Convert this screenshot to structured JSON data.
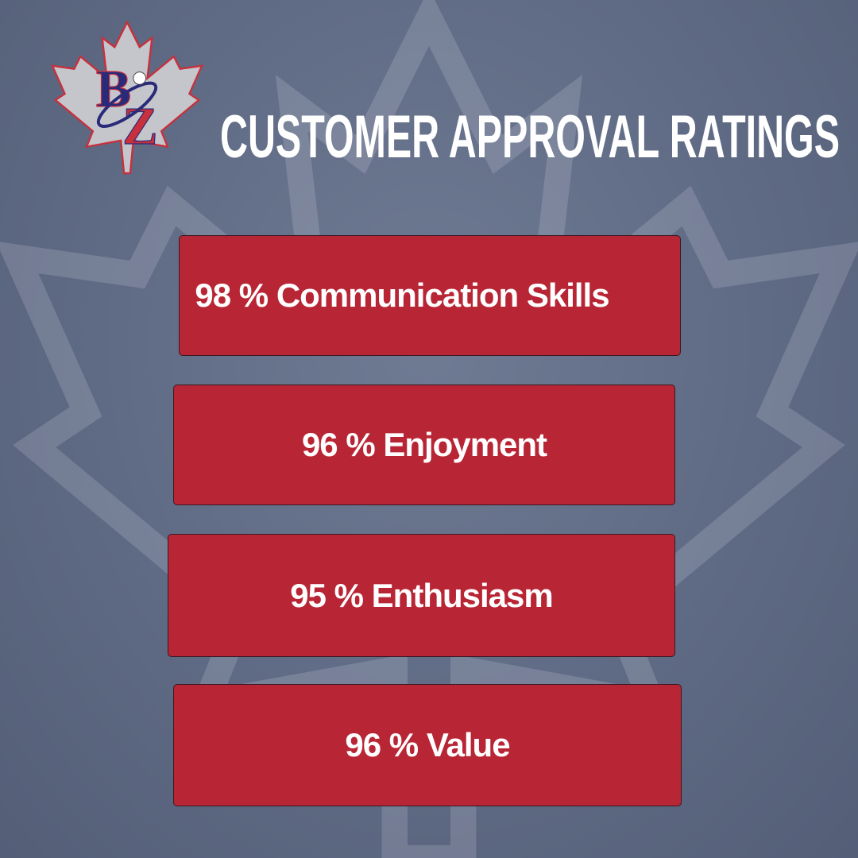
{
  "brand": {
    "logo_text": "BZ",
    "colors": {
      "red": "#b82535",
      "navy": "#2a2a7a",
      "leaf": "#c4c6cc"
    }
  },
  "title": "CUSTOMER APPROVAL RATINGS",
  "ratings": [
    {
      "percent": 98,
      "label": "98 % Communication Skills"
    },
    {
      "percent": 96,
      "label": "96 % Enjoyment"
    },
    {
      "percent": 95,
      "label": "95 % Enthusiasm"
    },
    {
      "percent": 96,
      "label": "96 % Value"
    }
  ]
}
